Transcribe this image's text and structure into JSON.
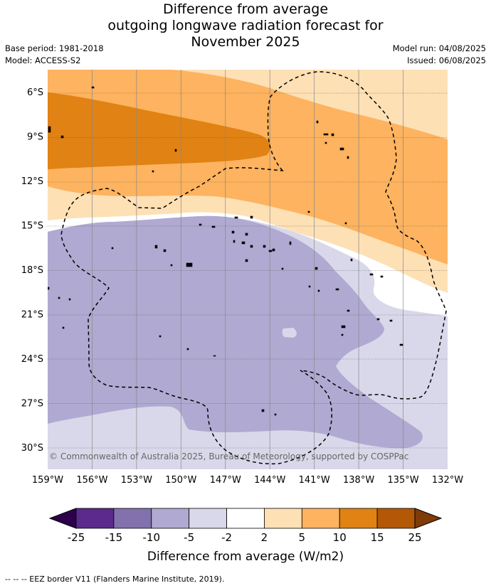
{
  "title": {
    "line1": "Difference from average",
    "line2": "outgoing longwave radiation forecast for",
    "line3": "November 2025"
  },
  "meta": {
    "base_period": "Base period: 1981-2018",
    "model": "Model: ACCESS-S2",
    "model_run": "Model run: 04/08/2025",
    "issued": "Issued: 06/08/2025"
  },
  "map": {
    "lon_range": [
      -159,
      -132
    ],
    "lat_range": [
      -31.5,
      -4.5
    ],
    "lat_ticks": [
      {
        "value": -6,
        "label": "6°S"
      },
      {
        "value": -9,
        "label": "9°S"
      },
      {
        "value": -12,
        "label": "12°S"
      },
      {
        "value": -15,
        "label": "15°S"
      },
      {
        "value": -18,
        "label": "18°S"
      },
      {
        "value": -21,
        "label": "21°S"
      },
      {
        "value": -24,
        "label": "24°S"
      },
      {
        "value": -27,
        "label": "27°S"
      },
      {
        "value": -30,
        "label": "30°S"
      }
    ],
    "lon_ticks": [
      {
        "value": -159,
        "label": "159°W"
      },
      {
        "value": -156,
        "label": "156°W"
      },
      {
        "value": -153,
        "label": "153°W"
      },
      {
        "value": -150,
        "label": "150°W"
      },
      {
        "value": -147,
        "label": "147°W"
      },
      {
        "value": -144,
        "label": "144°W"
      },
      {
        "value": -141,
        "label": "141°W"
      },
      {
        "value": -138,
        "label": "138°W"
      },
      {
        "value": -135,
        "label": "135°W"
      },
      {
        "value": -132,
        "label": "132°W"
      }
    ],
    "copyright": "© Commonwealth of Australia 2025, Bureau of Meteorology, supported by COSPPac"
  },
  "colorbar": {
    "title": "Difference from average (W/m2)",
    "ticks": [
      "-25",
      "-15",
      "-10",
      "-5",
      "-2",
      "2",
      "5",
      "10",
      "15",
      "25"
    ],
    "colors": [
      "#5b2a8c",
      "#8171ad",
      "#b0a9d1",
      "#d9d8ea",
      "#ffffff",
      "#fee0b5",
      "#fdb35f",
      "#e08214",
      "#b35806"
    ],
    "under_color": "#2d004b",
    "over_color": "#7f3b08"
  },
  "footnote": "-- -- -- EEZ border V11 (Flanders Marine Institute, 2019)."
}
